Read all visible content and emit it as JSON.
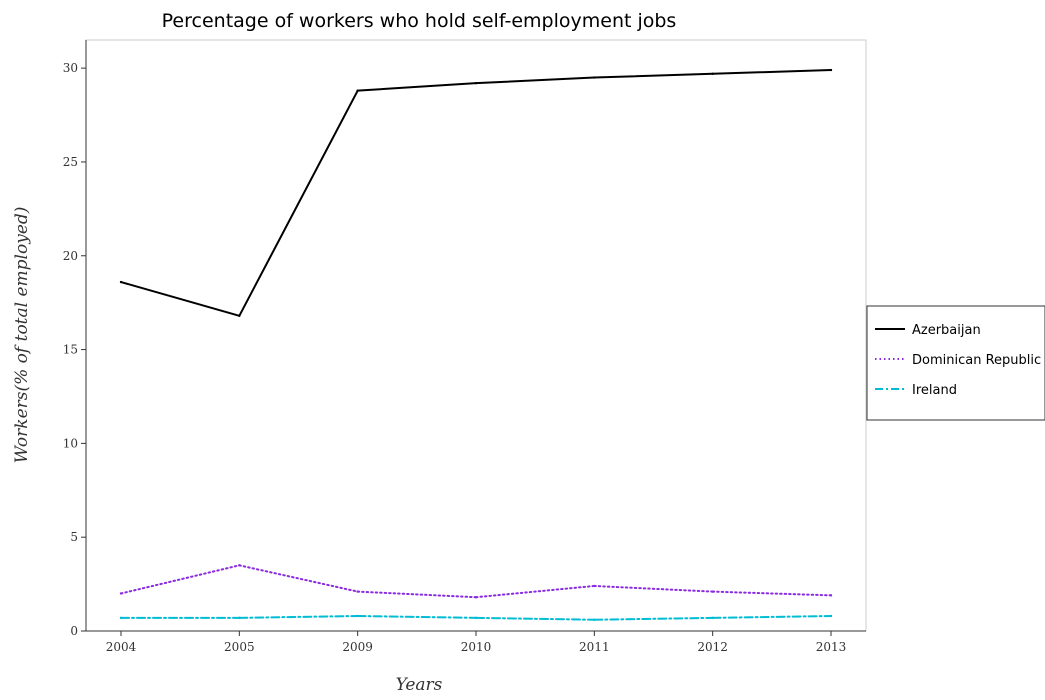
{
  "chart_data": {
    "type": "line",
    "title": "Percentage of workers who hold self-employment jobs",
    "xlabel": "Years",
    "ylabel": "Workers(% of total employed)",
    "categories": [
      "2004",
      "2005",
      "2009",
      "2010",
      "2011",
      "2012",
      "2013"
    ],
    "ylim": [
      0,
      31.5
    ],
    "yticks": [
      0,
      5,
      10,
      15,
      20,
      25,
      30
    ],
    "grid": false,
    "legend_position": "right",
    "series": [
      {
        "name": "Azerbaijan",
        "color": "#000000",
        "dash": "solid",
        "values": [
          18.6,
          16.8,
          28.8,
          29.2,
          29.5,
          29.7,
          29.9
        ]
      },
      {
        "name": "Dominican Republic",
        "color": "#8a2be2",
        "dash": "dotted",
        "values": [
          2.0,
          3.5,
          2.1,
          1.8,
          2.4,
          2.1,
          1.9
        ]
      },
      {
        "name": "Ireland",
        "color": "#00bcd4",
        "dash": "dashdot",
        "values": [
          0.7,
          0.7,
          0.8,
          0.7,
          0.6,
          0.7,
          0.8
        ]
      }
    ]
  }
}
